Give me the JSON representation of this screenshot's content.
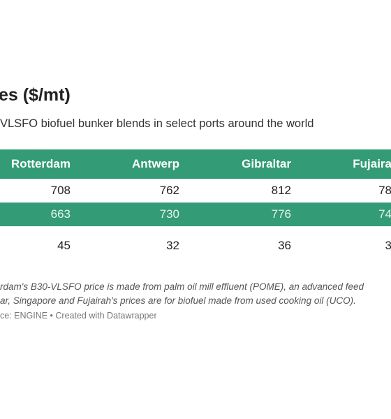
{
  "header": {
    "title": "es ($/mt)",
    "subtitle": "VLSFO biofuel bunker blends in select ports around the world"
  },
  "table": {
    "columns": [
      "Rotterdam",
      "Antwerp",
      "Gibraltar",
      "Fujaira"
    ],
    "rows": [
      [
        "708",
        "762",
        "812",
        "78"
      ],
      [
        "663",
        "730",
        "776",
        "74"
      ],
      [
        "45",
        "32",
        "36",
        "3"
      ]
    ]
  },
  "notes": [
    "rdam's B30-VLSFO price is made from palm oil mill effluent (POME), an advanced feed",
    "ar, Singapore and Fujairah's prices are for biofuel made from used cooking oil (UCO)."
  ],
  "source": "ce: ENGINE • Created with Datawrapper"
}
